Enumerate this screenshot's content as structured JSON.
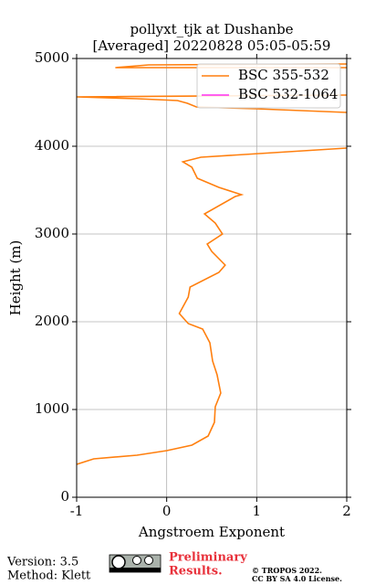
{
  "chart_data": {
    "type": "line",
    "orientation": "vertical",
    "title": "pollyxt_tjk at Dushanbe",
    "subtitle": "[Averaged] 20220828 05:05-05:59",
    "xlabel": "Angstroem Exponent",
    "ylabel": "Height (m)",
    "xlim": [
      -1,
      2
    ],
    "xticks": [
      -1,
      0,
      1,
      2
    ],
    "ylim": [
      0,
      5000
    ],
    "yticks": [
      0,
      1000,
      2000,
      3000,
      4000,
      5000
    ],
    "grid": true,
    "legend": "upper right",
    "y": [
      375,
      437,
      479,
      531,
      594,
      698,
      854,
      1031,
      1188,
      1396,
      1552,
      1760,
      1917,
      1979,
      2094,
      2281,
      2396,
      2563,
      2646,
      2802,
      2885,
      3000,
      3125,
      3229,
      3427,
      3448,
      3531,
      3635,
      3760,
      3823,
      3875,
      3927,
      3979,
      null,
      4385,
      4427,
      4448,
      4490,
      4521,
      4542,
      4563,
      4583,
      null,
      4896,
      4896,
      4927,
      4937
    ],
    "series": [
      {
        "name": "BSC 355-532",
        "color": "#ff7f0e",
        "values": [
          -1,
          -0.81,
          -0.33,
          0.0,
          0.28,
          0.46,
          0.53,
          0.54,
          0.6,
          0.56,
          0.51,
          0.48,
          0.4,
          0.24,
          0.14,
          0.24,
          0.26,
          0.58,
          0.65,
          0.5,
          0.45,
          0.62,
          0.54,
          0.42,
          0.76,
          0.83,
          0.58,
          0.34,
          0.28,
          0.18,
          0.38,
          1.19,
          2.0,
          null,
          2.0,
          0.99,
          0.33,
          0.23,
          0.12,
          -0.33,
          -1,
          2.0,
          null,
          2.0,
          -0.57,
          -0.2,
          2.0
        ]
      },
      {
        "name": "BSC 532-1064",
        "color": "#ff2ef0",
        "values": [
          null,
          null,
          null,
          null,
          null,
          null,
          null,
          null,
          null,
          null,
          null,
          null,
          null,
          null,
          null,
          null,
          null,
          null,
          null,
          null,
          null,
          null,
          null,
          null,
          null,
          null,
          null,
          null,
          null,
          null,
          null,
          null,
          null,
          null,
          null,
          null,
          null,
          null,
          null,
          null,
          null,
          null,
          null,
          null,
          null,
          null,
          null
        ]
      }
    ]
  },
  "footer": {
    "version": "Version: 3.5",
    "method": "Method: Klett",
    "notice": "Preliminary",
    "notice2": "Results.",
    "copyright": "© TROPOS 2022.",
    "license": "CC BY SA 4.0 License."
  }
}
